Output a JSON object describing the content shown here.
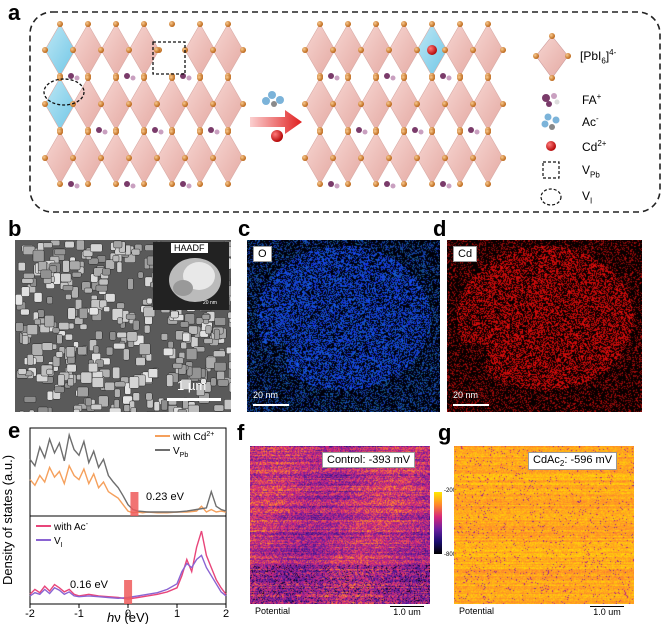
{
  "panels": {
    "a": {
      "label": "a"
    },
    "b": {
      "label": "b",
      "inset_label": "HAADF",
      "inset_scale": "20 nm",
      "scale": "1 µm"
    },
    "c": {
      "label": "c",
      "element": "O",
      "scale": "20 nm",
      "color": "#1b4fd6"
    },
    "d": {
      "label": "d",
      "element": "Cd",
      "scale": "20 nm",
      "color": "#c81414"
    },
    "e": {
      "label": "e"
    },
    "f": {
      "label": "f",
      "title": "Control: -393 mV",
      "footer": "Potential",
      "scale": "1.0 um"
    },
    "g": {
      "label": "g",
      "title_prefix": "CdAc",
      "title_sub": "2",
      "title_suffix": ": -596 mV",
      "footer": "Potential",
      "scale": "1.0 um"
    }
  },
  "legend_a": {
    "items": [
      {
        "name": "octahedron",
        "text": "[PbI",
        "sub": "6",
        "tail": "]",
        "sup": "4-"
      },
      {
        "name": "fa",
        "text": "FA",
        "sup": "+"
      },
      {
        "name": "ac",
        "text": "Ac",
        "sup": "-"
      },
      {
        "name": "cd",
        "text": "Cd",
        "sup": "2+"
      },
      {
        "name": "vpb",
        "text": "V",
        "sub": "Pb"
      },
      {
        "name": "vi",
        "text": "V",
        "sub": "I"
      }
    ]
  },
  "colorbar": {
    "max": "-200.0 mV",
    "min": "-800.0 mV"
  },
  "chart_data": {
    "type": "line",
    "xlabel": "hν (eV)",
    "ylabel": "Density of states (a.u.)",
    "xlim": [
      -2,
      2
    ],
    "xticks": [
      "-2",
      "-1",
      "0",
      "1",
      "2"
    ],
    "top": {
      "series": [
        {
          "name": "with Cd2+",
          "color": "#f5a05c",
          "x": [
            -2.0,
            -1.9,
            -1.8,
            -1.7,
            -1.6,
            -1.5,
            -1.4,
            -1.3,
            -1.2,
            -1.1,
            -1.0,
            -0.9,
            -0.8,
            -0.7,
            -0.6,
            -0.5,
            -0.4,
            -0.3,
            -0.2,
            -0.1,
            0.0,
            0.1,
            0.2,
            0.3,
            0.4,
            0.6,
            0.8,
            1.0,
            1.2,
            1.4,
            1.5,
            1.6,
            1.7,
            1.8,
            1.9,
            2.0
          ],
          "y": [
            0.45,
            0.38,
            0.5,
            0.42,
            0.6,
            0.48,
            0.55,
            0.4,
            0.62,
            0.5,
            0.45,
            0.58,
            0.4,
            0.52,
            0.35,
            0.42,
            0.3,
            0.26,
            0.22,
            0.14,
            0.06,
            0.04,
            0.05,
            0.04,
            0.05,
            0.04,
            0.04,
            0.05,
            0.05,
            0.06,
            0.12,
            0.05,
            0.08,
            0.05,
            0.06,
            0.05
          ]
        },
        {
          "name": "V_Pb",
          "color": "#6e6e6e",
          "x": [
            -2.0,
            -1.9,
            -1.8,
            -1.7,
            -1.6,
            -1.5,
            -1.4,
            -1.3,
            -1.2,
            -1.1,
            -1.0,
            -0.9,
            -0.8,
            -0.7,
            -0.6,
            -0.5,
            -0.4,
            -0.3,
            -0.2,
            -0.1,
            0.0,
            0.1,
            0.2,
            0.4,
            0.6,
            0.8,
            1.0,
            1.2,
            1.4,
            1.6,
            1.7,
            1.8,
            1.9,
            2.0
          ],
          "y": [
            0.7,
            0.62,
            0.85,
            0.72,
            0.95,
            0.78,
            0.9,
            0.68,
            1.0,
            0.82,
            0.75,
            0.92,
            0.66,
            0.8,
            0.6,
            0.7,
            0.5,
            0.42,
            0.35,
            0.25,
            0.14,
            0.08,
            0.06,
            0.05,
            0.05,
            0.05,
            0.05,
            0.06,
            0.08,
            0.1,
            0.3,
            0.12,
            0.08,
            0.06
          ]
        }
      ],
      "gap_label": "0.23 eV"
    },
    "bottom": {
      "series": [
        {
          "name": "with Ac-",
          "color": "#e8457a",
          "x": [
            -2.0,
            -1.9,
            -1.8,
            -1.7,
            -1.6,
            -1.5,
            -1.4,
            -1.3,
            -1.2,
            -1.1,
            -1.0,
            -0.8,
            -0.6,
            -0.4,
            -0.2,
            0.0,
            0.2,
            0.4,
            0.6,
            0.8,
            1.0,
            1.1,
            1.2,
            1.3,
            1.4,
            1.5,
            1.6,
            1.7,
            1.8,
            1.9,
            2.0
          ],
          "y": [
            0.12,
            0.18,
            0.14,
            0.22,
            0.16,
            0.24,
            0.2,
            0.15,
            0.18,
            0.12,
            0.1,
            0.12,
            0.1,
            0.09,
            0.08,
            0.06,
            0.08,
            0.1,
            0.12,
            0.15,
            0.2,
            0.35,
            0.55,
            0.4,
            0.7,
            0.9,
            0.6,
            0.45,
            0.3,
            0.2,
            0.12
          ]
        },
        {
          "name": "V_I",
          "color": "#8a63d2",
          "x": [
            -2.0,
            -1.9,
            -1.8,
            -1.7,
            -1.6,
            -1.5,
            -1.4,
            -1.3,
            -1.2,
            -1.1,
            -1.0,
            -0.8,
            -0.6,
            -0.4,
            -0.2,
            0.0,
            0.2,
            0.4,
            0.6,
            0.8,
            1.0,
            1.1,
            1.2,
            1.3,
            1.4,
            1.5,
            1.6,
            1.7,
            1.8,
            1.9,
            2.0
          ],
          "y": [
            0.1,
            0.14,
            0.12,
            0.18,
            0.13,
            0.2,
            0.17,
            0.12,
            0.15,
            0.1,
            0.09,
            0.1,
            0.09,
            0.08,
            0.07,
            0.08,
            0.1,
            0.12,
            0.14,
            0.18,
            0.25,
            0.4,
            0.5,
            0.45,
            0.55,
            0.6,
            0.45,
            0.35,
            0.25,
            0.15,
            0.1
          ]
        }
      ],
      "gap_label": "0.16 eV"
    }
  }
}
